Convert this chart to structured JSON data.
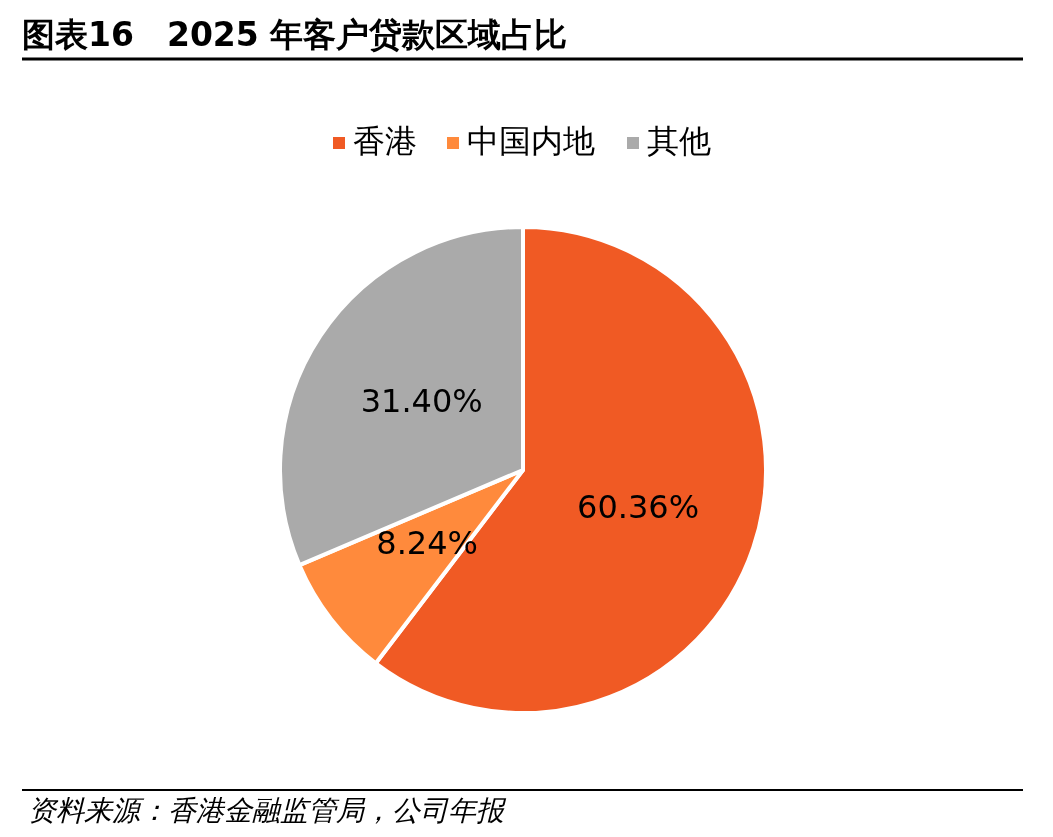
{
  "chart_data": {
    "type": "pie",
    "title": "图表16　2025 年客户贷款区域占比",
    "categories": [
      "香港",
      "中国内地",
      "其他"
    ],
    "values": [
      60.36,
      8.24,
      31.4
    ],
    "colors": [
      "#f05a24",
      "#ff8a3c",
      "#aaaaaa"
    ],
    "value_labels": [
      "60.36%",
      "8.24%",
      "31.40%"
    ],
    "legend": "top",
    "annotations": [
      "资料来源：香港金融监管局，公司年报"
    ]
  }
}
